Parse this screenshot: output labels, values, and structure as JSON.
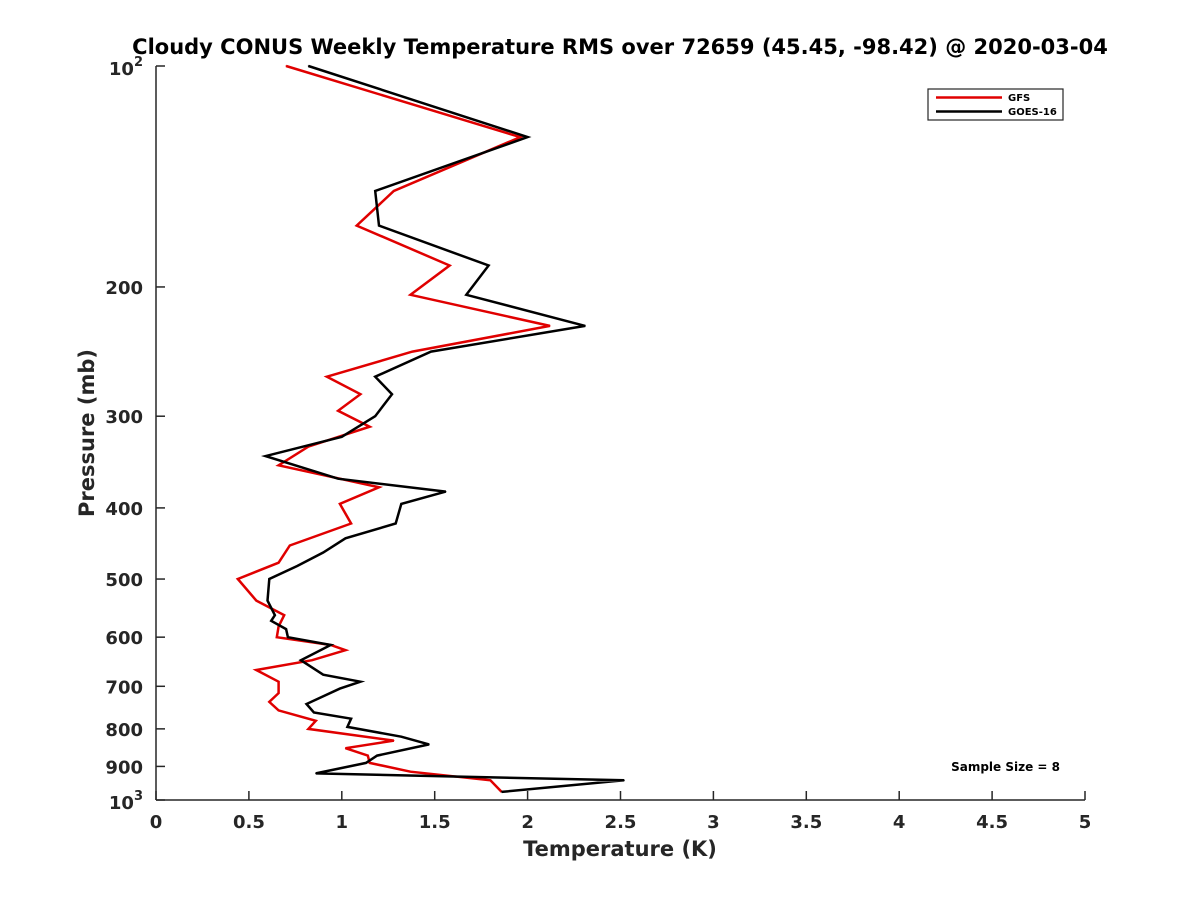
{
  "chart_data": {
    "type": "line",
    "title": "Cloudy CONUS Weekly Temperature RMS over 72659 (45.45, -98.42) @ 2020-03-04",
    "xlabel": "Temperature (K)",
    "ylabel": "Pressure (mb)",
    "xlim": [
      0,
      5
    ],
    "ylim": [
      100,
      1000
    ],
    "y_scale": "log",
    "y_reversed": true,
    "x_ticks": [
      "0",
      "0.5",
      "1",
      "1.5",
      "2",
      "2.5",
      "3",
      "3.5",
      "4",
      "4.5",
      "5"
    ],
    "y_ticks": [
      {
        "value": 100,
        "base": "10",
        "exp": "2"
      },
      {
        "value": 200,
        "label": "200"
      },
      {
        "value": 300,
        "label": "300"
      },
      {
        "value": 400,
        "label": "400"
      },
      {
        "value": 500,
        "label": "500"
      },
      {
        "value": 600,
        "label": "600"
      },
      {
        "value": 700,
        "label": "700"
      },
      {
        "value": 800,
        "label": "800"
      },
      {
        "value": 900,
        "label": "900"
      },
      {
        "value": 1000,
        "base": "10",
        "exp": "3"
      }
    ],
    "grid": false,
    "legend_position": "top-right",
    "annotation": "Sample Size = 8",
    "series": [
      {
        "name": "GFS",
        "color": "#e00000",
        "points": [
          [
            0.7,
            100
          ],
          [
            1.96,
            125
          ],
          [
            1.28,
            148
          ],
          [
            1.08,
            165
          ],
          [
            1.58,
            187
          ],
          [
            1.37,
            205
          ],
          [
            2.12,
            226
          ],
          [
            1.38,
            245
          ],
          [
            0.92,
            265
          ],
          [
            1.1,
            280
          ],
          [
            0.98,
            295
          ],
          [
            1.15,
            310
          ],
          [
            0.82,
            330
          ],
          [
            0.66,
            350
          ],
          [
            1.2,
            375
          ],
          [
            0.99,
            395
          ],
          [
            1.05,
            420
          ],
          [
            0.72,
            450
          ],
          [
            0.66,
            475
          ],
          [
            0.44,
            500
          ],
          [
            0.54,
            535
          ],
          [
            0.69,
            560
          ],
          [
            0.66,
            580
          ],
          [
            0.65,
            600
          ],
          [
            0.94,
            615
          ],
          [
            1.02,
            625
          ],
          [
            0.84,
            645
          ],
          [
            0.54,
            665
          ],
          [
            0.66,
            690
          ],
          [
            0.66,
            715
          ],
          [
            0.61,
            735
          ],
          [
            0.66,
            755
          ],
          [
            0.86,
            780
          ],
          [
            0.82,
            800
          ],
          [
            1.28,
            830
          ],
          [
            1.02,
            850
          ],
          [
            1.14,
            870
          ],
          [
            1.15,
            890
          ],
          [
            1.37,
            915
          ],
          [
            1.8,
            940
          ],
          [
            1.86,
            975
          ]
        ]
      },
      {
        "name": "GOES-16",
        "color": "#000000",
        "points": [
          [
            0.82,
            100
          ],
          [
            2.0,
            125
          ],
          [
            1.18,
            148
          ],
          [
            1.2,
            165
          ],
          [
            1.79,
            187
          ],
          [
            1.67,
            205
          ],
          [
            2.31,
            226
          ],
          [
            1.48,
            245
          ],
          [
            1.18,
            265
          ],
          [
            1.27,
            280
          ],
          [
            1.18,
            300
          ],
          [
            1.0,
            320
          ],
          [
            0.59,
            340
          ],
          [
            0.98,
            365
          ],
          [
            1.56,
            380
          ],
          [
            1.32,
            395
          ],
          [
            1.29,
            420
          ],
          [
            1.02,
            440
          ],
          [
            0.9,
            460
          ],
          [
            0.76,
            480
          ],
          [
            0.61,
            500
          ],
          [
            0.6,
            535
          ],
          [
            0.64,
            560
          ],
          [
            0.62,
            570
          ],
          [
            0.7,
            585
          ],
          [
            0.71,
            600
          ],
          [
            0.94,
            615
          ],
          [
            0.78,
            645
          ],
          [
            0.9,
            675
          ],
          [
            1.1,
            690
          ],
          [
            0.99,
            705
          ],
          [
            0.81,
            740
          ],
          [
            0.85,
            760
          ],
          [
            1.05,
            775
          ],
          [
            1.03,
            795
          ],
          [
            1.32,
            820
          ],
          [
            1.47,
            840
          ],
          [
            1.19,
            870
          ],
          [
            1.13,
            890
          ],
          [
            0.86,
            920
          ],
          [
            2.52,
            940
          ],
          [
            1.86,
            975
          ]
        ]
      }
    ]
  }
}
